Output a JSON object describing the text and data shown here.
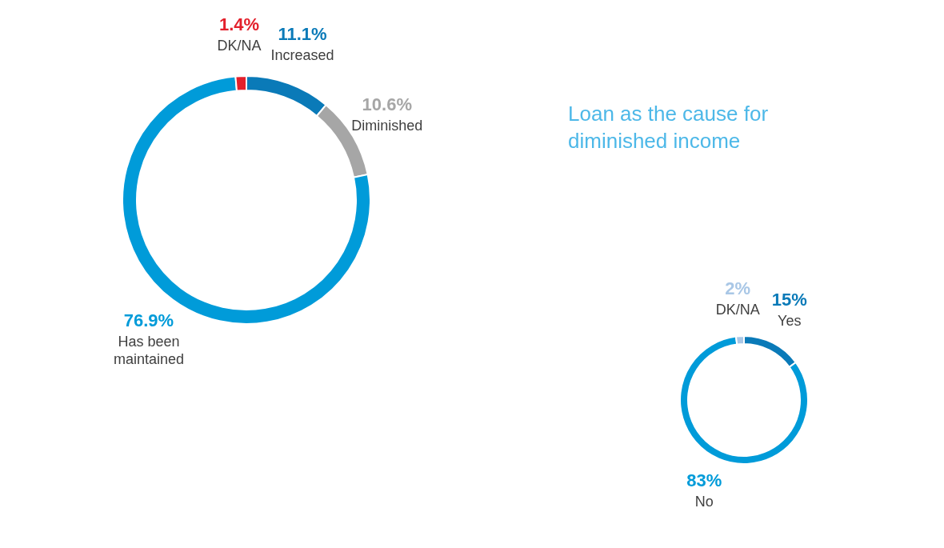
{
  "chart_data": [
    {
      "type": "donut",
      "categories": [
        "Increased",
        "Diminished",
        "Has been maintained",
        "DK/NA"
      ],
      "values": [
        11.1,
        10.6,
        76.9,
        1.4
      ],
      "value_labels": [
        "11.1%",
        "10.6%",
        "76.9%",
        "1.4%"
      ],
      "colors": [
        "#0a7ab8",
        "#a6a6a6",
        "#009bd9",
        "#e3202b"
      ],
      "legend": false
    },
    {
      "type": "donut",
      "title": "Loan as the cause for diminished income",
      "categories": [
        "Yes",
        "No",
        "DK/NA"
      ],
      "values": [
        15,
        83,
        2
      ],
      "value_labels": [
        "15%",
        "83%",
        "2%"
      ],
      "colors": [
        "#0a7ab8",
        "#009bd9",
        "#a9c7e6"
      ],
      "legend": false
    }
  ]
}
